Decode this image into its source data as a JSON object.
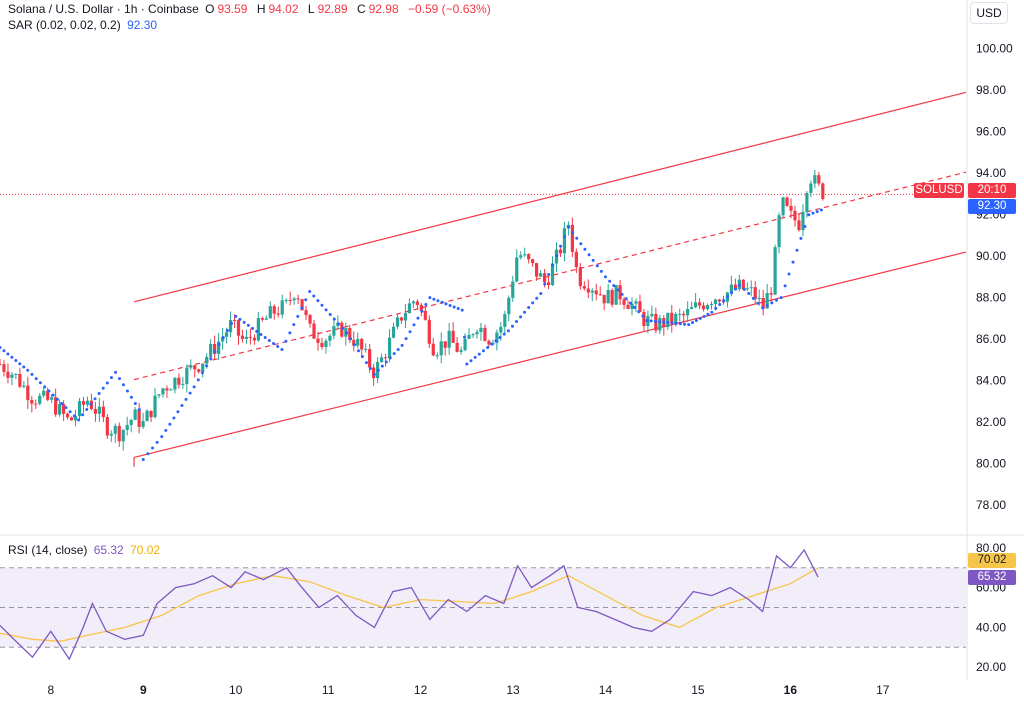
{
  "header": {
    "symbol": "Solana / U.S. Dollar · 1h · Coinbase",
    "o_label": "O",
    "o_value": "93.59",
    "h_label": "H",
    "h_value": "94.02",
    "l_label": "L",
    "l_value": "92.89",
    "c_label": "C",
    "c_value": "92.98",
    "change": "−0.59 (−0.63%)",
    "sar_label": "SAR (0.02, 0.02, 0.2)",
    "sar_value": "92.30"
  },
  "currency_button": "USD",
  "price_tags": {
    "symbol": "SOLUSD",
    "countdown": "20:10",
    "sar": "92.30"
  },
  "rsi_header": {
    "label": "RSI (14, close)",
    "rsi_value": "65.32",
    "ma_value": "70.02"
  },
  "rsi_tags": {
    "ma": "70.02",
    "rsi": "65.32"
  },
  "colors": {
    "up": "#26a69a",
    "down": "#f23645",
    "sar": "#2962ff",
    "channel": "#f23645",
    "rsi": "#7e57c2",
    "rsi_ma": "#f7c548",
    "rsi_band": "#ede7f6",
    "tag_blue": "#2962ff",
    "tag_yellow": "#f7c548",
    "tag_purple": "#7e57c2"
  },
  "chart_data": [
    {
      "type": "candlestick",
      "title": "Solana / U.S. Dollar · 1h · Coinbase",
      "x_ticks": [
        "8",
        "9",
        "10",
        "11",
        "12",
        "13",
        "14",
        "15",
        "16",
        "17"
      ],
      "x_tick_days": [
        8,
        9,
        10,
        11,
        12,
        13,
        14,
        15,
        16,
        17
      ],
      "bold_ticks": [
        "9",
        "16"
      ],
      "x_range": [
        7.45,
        17.9
      ],
      "ylim": [
        76.8,
        101
      ],
      "y_ticks": [
        "78.00",
        "80.00",
        "82.00",
        "84.00",
        "86.00",
        "88.00",
        "90.00",
        "92.00",
        "94.00",
        "96.00",
        "98.00",
        "100.00"
      ],
      "y_tick_values": [
        78,
        80,
        82,
        84,
        86,
        88,
        90,
        92,
        94,
        96,
        98,
        100
      ],
      "last_price": 92.98,
      "sar_value": 92.3,
      "closes": [
        [
          7.45,
          84.8
        ],
        [
          7.6,
          84.3
        ],
        [
          7.8,
          83.2
        ],
        [
          8.0,
          83.0
        ],
        [
          8.2,
          82.0
        ],
        [
          8.4,
          83.1
        ],
        [
          8.5,
          82.5
        ],
        [
          8.6,
          81.8
        ],
        [
          8.75,
          81.5
        ],
        [
          8.9,
          82.3
        ],
        [
          9.0,
          81.9
        ],
        [
          9.2,
          83.6
        ],
        [
          9.4,
          84.2
        ],
        [
          9.6,
          84.8
        ],
        [
          9.75,
          85.5
        ],
        [
          9.95,
          86.7
        ],
        [
          10.1,
          85.8
        ],
        [
          10.25,
          86.6
        ],
        [
          10.4,
          87.3
        ],
        [
          10.55,
          87.6
        ],
        [
          10.65,
          88.5
        ],
        [
          10.8,
          86.4
        ],
        [
          10.95,
          86.0
        ],
        [
          11.15,
          86.5
        ],
        [
          11.3,
          85.9
        ],
        [
          11.5,
          84.4
        ],
        [
          11.6,
          85.2
        ],
        [
          11.8,
          87.2
        ],
        [
          11.95,
          88.0
        ],
        [
          12.05,
          86.8
        ],
        [
          12.15,
          85.5
        ],
        [
          12.3,
          86.0
        ],
        [
          12.45,
          85.3
        ],
        [
          12.6,
          86.8
        ],
        [
          12.75,
          86.0
        ],
        [
          12.9,
          86.8
        ],
        [
          13.05,
          90.2
        ],
        [
          13.2,
          89.5
        ],
        [
          13.35,
          88.7
        ],
        [
          13.5,
          90.2
        ],
        [
          13.6,
          91.6
        ],
        [
          13.7,
          89.0
        ],
        [
          13.85,
          88.6
        ],
        [
          14.0,
          88.0
        ],
        [
          14.15,
          88.2
        ],
        [
          14.3,
          87.6
        ],
        [
          14.4,
          87.0
        ],
        [
          14.55,
          86.7
        ],
        [
          14.7,
          86.9
        ],
        [
          14.85,
          87.1
        ],
        [
          15.0,
          87.6
        ],
        [
          15.15,
          88.0
        ],
        [
          15.3,
          88.2
        ],
        [
          15.45,
          88.5
        ],
        [
          15.6,
          88.2
        ],
        [
          15.7,
          87.5
        ],
        [
          15.8,
          88.6
        ],
        [
          15.9,
          92.6
        ],
        [
          16.0,
          91.9
        ],
        [
          16.1,
          91.6
        ],
        [
          16.2,
          94.0
        ],
        [
          16.3,
          93.3
        ],
        [
          16.38,
          92.98
        ]
      ],
      "sar": [
        [
          7.45,
          85.6
        ],
        [
          7.75,
          84.5
        ],
        [
          8.3,
          82.1
        ],
        [
          8.7,
          84.4
        ],
        [
          9.0,
          82.3
        ],
        [
          9.0,
          80.2
        ],
        [
          9.2,
          81.3
        ],
        [
          9.55,
          83.7
        ],
        [
          10.0,
          87.1
        ],
        [
          10.5,
          85.5
        ],
        [
          10.8,
          88.3
        ],
        [
          11.2,
          86.3
        ],
        [
          11.5,
          84.3
        ],
        [
          11.8,
          85.7
        ],
        [
          12.1,
          88.0
        ],
        [
          12.45,
          87.4
        ],
        [
          12.5,
          84.8
        ],
        [
          12.95,
          86.4
        ],
        [
          13.3,
          88.2
        ],
        [
          13.6,
          91.4
        ],
        [
          14.0,
          89.0
        ],
        [
          14.45,
          86.9
        ],
        [
          14.9,
          86.7
        ],
        [
          15.15,
          87.3
        ],
        [
          15.45,
          88.6
        ],
        [
          15.55,
          88.2
        ],
        [
          15.7,
          87.5
        ],
        [
          15.9,
          88.0
        ],
        [
          16.2,
          92.0
        ],
        [
          16.38,
          92.3
        ]
      ],
      "channel": {
        "upper": [
          [
            8.9,
            87.8
          ],
          [
            17.9,
            97.9
          ]
        ],
        "lower": [
          [
            8.9,
            80.3
          ],
          [
            17.9,
            90.2
          ]
        ],
        "mid": [
          [
            8.9,
            84.05
          ],
          [
            17.9,
            94.05
          ]
        ]
      }
    },
    {
      "type": "line",
      "title": "RSI (14, close)",
      "ylim": [
        16,
        84
      ],
      "y_ticks": [
        "20.00",
        "40.00",
        "60.00",
        "80.00"
      ],
      "y_tick_values": [
        20,
        40,
        60,
        80
      ],
      "bands": [
        30,
        50,
        70
      ],
      "series": [
        {
          "name": "RSI",
          "points": [
            [
              7.45,
              41
            ],
            [
              7.6,
              34
            ],
            [
              7.8,
              25
            ],
            [
              8.0,
              38
            ],
            [
              8.2,
              24
            ],
            [
              8.35,
              40
            ],
            [
              8.45,
              52
            ],
            [
              8.6,
              38
            ],
            [
              8.8,
              34
            ],
            [
              9.0,
              36
            ],
            [
              9.15,
              52
            ],
            [
              9.35,
              60
            ],
            [
              9.55,
              62
            ],
            [
              9.75,
              66
            ],
            [
              9.95,
              60
            ],
            [
              10.1,
              68
            ],
            [
              10.3,
              64
            ],
            [
              10.55,
              70
            ],
            [
              10.7,
              61
            ],
            [
              10.9,
              50
            ],
            [
              11.1,
              56
            ],
            [
              11.3,
              46
            ],
            [
              11.5,
              40
            ],
            [
              11.7,
              58
            ],
            [
              11.9,
              60
            ],
            [
              12.1,
              44
            ],
            [
              12.3,
              54
            ],
            [
              12.5,
              48
            ],
            [
              12.7,
              56
            ],
            [
              12.9,
              52
            ],
            [
              13.05,
              71
            ],
            [
              13.2,
              60
            ],
            [
              13.4,
              66
            ],
            [
              13.55,
              71
            ],
            [
              13.7,
              50
            ],
            [
              13.9,
              48
            ],
            [
              14.1,
              44
            ],
            [
              14.3,
              40
            ],
            [
              14.5,
              38
            ],
            [
              14.7,
              44
            ],
            [
              14.95,
              58
            ],
            [
              15.15,
              56
            ],
            [
              15.35,
              60
            ],
            [
              15.55,
              54
            ],
            [
              15.7,
              48
            ],
            [
              15.85,
              76
            ],
            [
              16.0,
              70
            ],
            [
              16.15,
              79
            ],
            [
              16.3,
              65.32
            ]
          ]
        },
        {
          "name": "MA",
          "points": [
            [
              7.45,
              37
            ],
            [
              7.8,
              34
            ],
            [
              8.1,
              33
            ],
            [
              8.4,
              36
            ],
            [
              8.8,
              40
            ],
            [
              9.2,
              46
            ],
            [
              9.6,
              56
            ],
            [
              10.0,
              62
            ],
            [
              10.4,
              66
            ],
            [
              10.8,
              63
            ],
            [
              11.2,
              56
            ],
            [
              11.6,
              50
            ],
            [
              12.0,
              54
            ],
            [
              12.4,
              53
            ],
            [
              12.8,
              52
            ],
            [
              13.2,
              58
            ],
            [
              13.6,
              66
            ],
            [
              14.0,
              56
            ],
            [
              14.4,
              46
            ],
            [
              14.8,
              40
            ],
            [
              15.2,
              50
            ],
            [
              15.6,
              56
            ],
            [
              16.0,
              62
            ],
            [
              16.3,
              70.02
            ]
          ]
        }
      ]
    }
  ]
}
